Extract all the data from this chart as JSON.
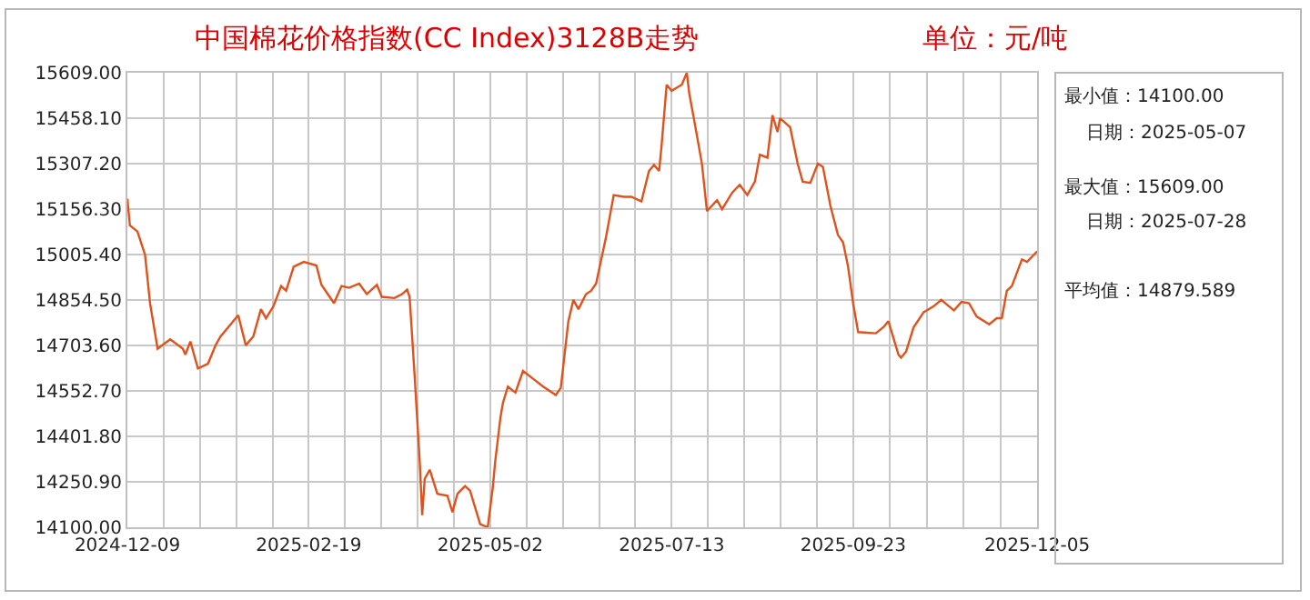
{
  "chart_data": {
    "type": "line",
    "title": "中国棉花价格指数(CC Index)3128B走势",
    "subtitle": "单位：元/吨",
    "x": [
      "2024-12-09",
      "2024-12-10",
      "2024-12-13",
      "2024-12-16",
      "2024-12-18",
      "2024-12-21",
      "2024-12-26",
      "2024-12-31",
      "2025-01-01",
      "2025-01-03",
      "2025-01-06",
      "2025-01-10",
      "2025-01-13",
      "2025-01-15",
      "2025-01-22",
      "2025-01-25",
      "2025-01-28",
      "2025-01-31",
      "2025-02-02",
      "2025-02-05",
      "2025-02-08",
      "2025-02-10",
      "2025-02-13",
      "2025-02-17",
      "2025-02-22",
      "2025-02-24",
      "2025-03-01",
      "2025-03-04",
      "2025-03-07",
      "2025-03-11",
      "2025-03-14",
      "2025-03-18",
      "2025-03-20",
      "2025-03-25",
      "2025-03-28",
      "2025-03-30",
      "2025-03-31",
      "2025-04-02",
      "2025-04-04",
      "2025-04-05",
      "2025-04-06",
      "2025-04-08",
      "2025-04-11",
      "2025-04-15",
      "2025-04-17",
      "2025-04-19",
      "2025-04-22",
      "2025-04-24",
      "2025-04-28",
      "2025-05-01",
      "2025-05-03",
      "2025-05-04",
      "2025-05-06",
      "2025-05-07",
      "2025-05-09",
      "2025-05-12",
      "2025-05-15",
      "2025-05-19",
      "2025-05-23",
      "2025-05-28",
      "2025-05-30",
      "2025-06-02",
      "2025-06-04",
      "2025-06-06",
      "2025-06-09",
      "2025-06-11",
      "2025-06-13",
      "2025-06-17",
      "2025-06-20",
      "2025-06-24",
      "2025-06-27",
      "2025-07-01",
      "2025-07-04",
      "2025-07-06",
      "2025-07-08",
      "2025-07-09",
      "2025-07-11",
      "2025-07-13",
      "2025-07-15",
      "2025-07-17",
      "2025-07-19",
      "2025-07-20",
      "2025-07-22",
      "2025-07-25",
      "2025-07-27",
      "2025-07-31",
      "2025-08-02",
      "2025-08-06",
      "2025-08-09",
      "2025-08-12",
      "2025-08-15",
      "2025-08-17",
      "2025-08-20",
      "2025-08-22",
      "2025-08-24",
      "2025-08-25",
      "2025-08-29",
      "2025-09-01",
      "2025-09-03",
      "2025-09-06",
      "2025-09-09",
      "2025-09-11",
      "2025-09-14",
      "2025-09-17",
      "2025-09-19",
      "2025-09-21",
      "2025-09-23",
      "2025-09-25",
      "2025-10-02",
      "2025-10-05",
      "2025-10-07",
      "2025-10-11",
      "2025-10-12",
      "2025-10-14",
      "2025-10-17",
      "2025-10-21",
      "2025-10-25",
      "2025-10-28",
      "2025-10-31",
      "2025-11-02",
      "2025-11-05",
      "2025-11-08",
      "2025-11-11",
      "2025-11-16",
      "2025-11-19",
      "2025-11-21",
      "2025-11-23",
      "2025-11-25",
      "2025-11-29",
      "2025-12-01",
      "2025-12-05"
    ],
    "series": [
      {
        "color": "#e0521c",
        "values": [
          15191,
          15102,
          15082,
          15005,
          14844,
          14693,
          14724,
          14693,
          14673,
          14717,
          14627,
          14643,
          14704,
          14734,
          14804,
          14704,
          14734,
          14824,
          14794,
          14834,
          14901,
          14885,
          14965,
          14981,
          14969,
          14905,
          14844,
          14901,
          14895,
          14909,
          14874,
          14905,
          14865,
          14861,
          14874,
          14889,
          14865,
          14603,
          14321,
          14140,
          14261,
          14291,
          14211,
          14205,
          14150,
          14211,
          14237,
          14221,
          14110,
          14100,
          14231,
          14321,
          14462,
          14512,
          14567,
          14547,
          14619,
          14593,
          14567,
          14539,
          14563,
          14784,
          14855,
          14824,
          14874,
          14885,
          14909,
          15066,
          15203,
          15197,
          15197,
          15182,
          15283,
          15303,
          15283,
          15368,
          15569,
          15549,
          15559,
          15569,
          15609,
          15539,
          15448,
          15307,
          15150,
          15186,
          15156,
          15211,
          15237,
          15203,
          15247,
          15337,
          15327,
          15468,
          15412,
          15458,
          15428,
          15307,
          15247,
          15243,
          15307,
          15297,
          15167,
          15070,
          15046,
          14965,
          14844,
          14748,
          14744,
          14764,
          14784,
          14673,
          14663,
          14683,
          14764,
          14814,
          14834,
          14855,
          14834,
          14820,
          14848,
          14844,
          14800,
          14774,
          14794,
          14794,
          14885,
          14901,
          14989,
          14981,
          15016
        ]
      }
    ],
    "xlim": [
      "2024-12-09",
      "2025-12-05"
    ],
    "xticks": [
      {
        "value": "2024-12-09",
        "label": "2024-12-09"
      },
      {
        "value": "2024-12-23T09:36",
        "label": null
      },
      {
        "value": "2025-01-06T19:12",
        "label": null
      },
      {
        "value": "2025-01-21T04:48",
        "label": null
      },
      {
        "value": "2025-02-04T14:24",
        "label": null
      },
      {
        "value": "2025-02-19",
        "label": "2025-02-19"
      },
      {
        "value": "2025-03-05T09:36",
        "label": null
      },
      {
        "value": "2025-03-19T19:12",
        "label": null
      },
      {
        "value": "2025-04-03T04:48",
        "label": null
      },
      {
        "value": "2025-04-17T14:24",
        "label": null
      },
      {
        "value": "2025-05-02",
        "label": "2025-05-02"
      },
      {
        "value": "2025-05-16T09:36",
        "label": null
      },
      {
        "value": "2025-05-30T19:12",
        "label": null
      },
      {
        "value": "2025-06-14T04:48",
        "label": null
      },
      {
        "value": "2025-06-28T14:24",
        "label": null
      },
      {
        "value": "2025-07-13",
        "label": "2025-07-13"
      },
      {
        "value": "2025-07-27T09:36",
        "label": null
      },
      {
        "value": "2025-08-10T19:12",
        "label": null
      },
      {
        "value": "2025-08-25T04:48",
        "label": null
      },
      {
        "value": "2025-09-08T14:24",
        "label": null
      },
      {
        "value": "2025-09-23",
        "label": "2025-09-23"
      },
      {
        "value": "2025-10-07T14:24",
        "label": null
      },
      {
        "value": "2025-10-22T04:48",
        "label": null
      },
      {
        "value": "2025-11-05T19:12",
        "label": null
      },
      {
        "value": "2025-11-20T09:36",
        "label": null
      },
      {
        "value": "2025-12-05",
        "label": "2025-12-05"
      }
    ],
    "ylim": [
      14100,
      15609
    ],
    "yticks": [
      {
        "value": 14100,
        "label": "14100.00"
      },
      {
        "value": 14250.9,
        "label": "14250.90"
      },
      {
        "value": 14401.8,
        "label": "14401.80"
      },
      {
        "value": 14552.7,
        "label": "14552.70"
      },
      {
        "value": 14703.6,
        "label": "14703.60"
      },
      {
        "value": 14854.5,
        "label": "14854.50"
      },
      {
        "value": 15005.4,
        "label": "15005.40"
      },
      {
        "value": 15156.3,
        "label": "15156.30"
      },
      {
        "value": 15307.2,
        "label": "15307.20"
      },
      {
        "value": 15458.1,
        "label": "15458.10"
      },
      {
        "value": 15609,
        "label": "15609.00"
      }
    ],
    "grid": true,
    "legend": false,
    "marker": "none",
    "line_style": "solid",
    "annotations": [
      "最小值：14100.00",
      "日期：2025-05-07",
      "最大值：15609.00",
      "日期：2025-07-28",
      "平均值：14879.589"
    ]
  }
}
